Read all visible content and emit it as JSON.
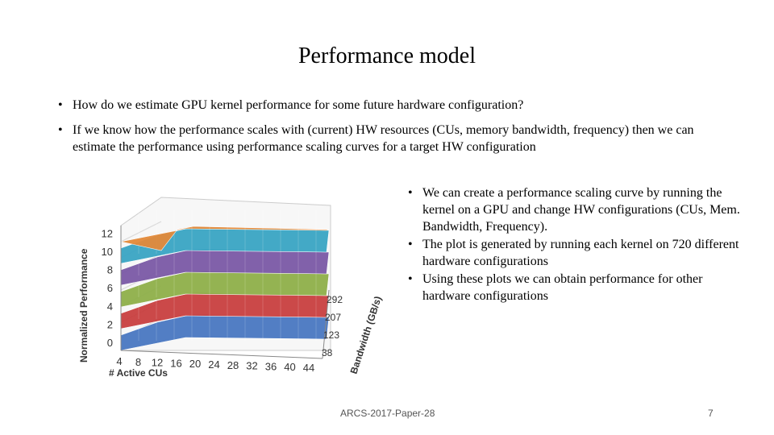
{
  "slide": {
    "title": "Performance model",
    "bullets_top": [
      "How do we estimate GPU kernel performance for some future hardware configuration?",
      "If we know how the performance scales with (current) HW resources (CUs, memory bandwidth, frequency) then we can estimate the performance using performance scaling curves for a target HW configuration"
    ],
    "bullets_side": [
      "We can create a performance scaling curve by running the kernel on a GPU and change HW configurations (CUs, Mem. Bandwidth, Frequency).",
      "The plot is generated by running each kernel on 720 different hardware configurations",
      "Using these plots we can obtain performance for other hardware configurations"
    ],
    "bullet_glyph": "•",
    "footer_left": "ARCS-2017-Paper-28",
    "page_number": "7"
  },
  "chart_data": {
    "type": "surface3d",
    "y_label": "Normalized Performance",
    "x_label": "# Active CUs",
    "z_label": "Bandwidth (GB/s)",
    "y_ticks": [
      "0",
      "2",
      "4",
      "6",
      "8",
      "10",
      "12"
    ],
    "x_ticks": [
      "4",
      "8",
      "12",
      "16",
      "20",
      "24",
      "28",
      "32",
      "36",
      "40",
      "44"
    ],
    "z_ticks": [
      "38",
      "123",
      "207",
      "292"
    ],
    "band_colors": [
      "#4a78c2",
      "#c94040",
      "#8fb04a",
      "#7b5aa6",
      "#3aa5c4",
      "#e38a3a"
    ]
  }
}
